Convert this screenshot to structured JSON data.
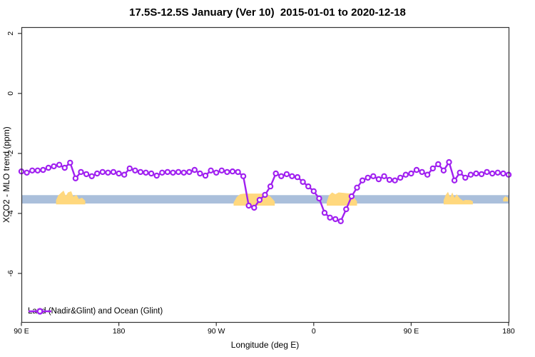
{
  "chart_data": {
    "type": "line",
    "title": "17.5S-12.5S January (Ver 10)  2015-01-01 to 2020-12-18",
    "xlabel": "Longitude (deg E)",
    "ylabel": "XCO2 - MLO trend (ppm)",
    "xlim": [
      90,
      540
    ],
    "ylim": [
      -7.62,
      2.21
    ],
    "grid": "off",
    "x_ticks": [
      {
        "value": 90,
        "label": "90 E"
      },
      {
        "value": 180,
        "label": "180"
      },
      {
        "value": 270,
        "label": "90 W"
      },
      {
        "value": 360,
        "label": "0"
      },
      {
        "value": 450,
        "label": "90 E"
      },
      {
        "value": 540,
        "label": "180"
      }
    ],
    "y_ticks": [
      {
        "value": 2,
        "label": "2"
      },
      {
        "value": 0,
        "label": "0"
      },
      {
        "value": -2,
        "label": "-2"
      },
      {
        "value": -4,
        "label": "-4"
      },
      {
        "value": -6,
        "label": "-6"
      }
    ],
    "legend": [
      {
        "label": "Land (Nadir&Glint) and Ocean (Glint)",
        "color": "#A020F0",
        "marker": "open-circle",
        "position": "bottom-left-inside"
      }
    ],
    "blue_band": {
      "y_top": -3.39,
      "y_bottom": -3.67,
      "x_from": 90,
      "x_to": 540,
      "color": "#AABFDB"
    },
    "orange_patches": [
      {
        "bottom": -3.7,
        "top_profile": [
          [
            122,
            -3.56
          ],
          [
            124,
            -3.4
          ],
          [
            127,
            -3.3
          ],
          [
            129,
            -3.24
          ],
          [
            131,
            -3.42
          ],
          [
            133,
            -3.3
          ],
          [
            136,
            -3.26
          ],
          [
            138,
            -3.44
          ],
          [
            141,
            -3.38
          ],
          [
            143,
            -3.52
          ],
          [
            146,
            -3.48
          ],
          [
            149,
            -3.58
          ]
        ]
      },
      {
        "bottom": -3.74,
        "top_profile": [
          [
            286,
            -3.64
          ],
          [
            289,
            -3.45
          ],
          [
            292,
            -3.36
          ],
          [
            296,
            -3.34
          ],
          [
            316,
            -3.34
          ],
          [
            320,
            -3.44
          ],
          [
            324,
            -3.6
          ]
        ]
      },
      {
        "bottom": -3.74,
        "top_profile": [
          [
            372,
            -3.62
          ],
          [
            374,
            -3.4
          ],
          [
            377,
            -3.3
          ],
          [
            380,
            -3.36
          ],
          [
            383,
            -3.3
          ],
          [
            394,
            -3.34
          ],
          [
            397,
            -3.46
          ],
          [
            400,
            -3.6
          ]
        ]
      },
      {
        "bottom": -3.7,
        "top_profile": [
          [
            480,
            -3.56
          ],
          [
            482,
            -3.38
          ],
          [
            484,
            -3.28
          ],
          [
            486,
            -3.46
          ],
          [
            488,
            -3.3
          ],
          [
            490,
            -3.48
          ],
          [
            492,
            -3.36
          ],
          [
            495,
            -3.5
          ],
          [
            498,
            -3.58
          ],
          [
            500,
            -3.55
          ],
          [
            505,
            -3.56
          ],
          [
            507,
            -3.6
          ]
        ]
      },
      {
        "bottom": -3.6,
        "top_profile": [
          [
            535,
            -3.5
          ],
          [
            537,
            -3.43
          ],
          [
            539.5,
            -3.48
          ]
        ]
      }
    ],
    "series": [
      {
        "name": "Land (Nadir&Glint) and Ocean (Glint)",
        "color": "#A020F0",
        "x": [
          90,
          95,
          100,
          105,
          110,
          115,
          120,
          125,
          130,
          135,
          140,
          145,
          150,
          155,
          160,
          165,
          170,
          175,
          180,
          185,
          190,
          195,
          200,
          205,
          210,
          215,
          220,
          225,
          230,
          235,
          240,
          245,
          250,
          255,
          260,
          265,
          270,
          275,
          280,
          285,
          290,
          295,
          300,
          305,
          310,
          315,
          320,
          325,
          330,
          335,
          340,
          345,
          350,
          355,
          360,
          365,
          370,
          375,
          380,
          385,
          390,
          395,
          400,
          405,
          410,
          415,
          420,
          425,
          430,
          435,
          440,
          445,
          450,
          455,
          460,
          465,
          470,
          475,
          480,
          485,
          490,
          495,
          500,
          505,
          510,
          515,
          520,
          525,
          530,
          535,
          540
        ],
        "y": [
          -2.6,
          -2.64,
          -2.57,
          -2.57,
          -2.55,
          -2.48,
          -2.43,
          -2.38,
          -2.48,
          -2.31,
          -2.83,
          -2.62,
          -2.69,
          -2.76,
          -2.67,
          -2.62,
          -2.64,
          -2.62,
          -2.67,
          -2.71,
          -2.5,
          -2.57,
          -2.62,
          -2.64,
          -2.67,
          -2.74,
          -2.64,
          -2.62,
          -2.64,
          -2.62,
          -2.64,
          -2.62,
          -2.55,
          -2.67,
          -2.74,
          -2.57,
          -2.64,
          -2.57,
          -2.62,
          -2.6,
          -2.62,
          -2.76,
          -3.74,
          -3.81,
          -3.55,
          -3.38,
          -3.1,
          -2.67,
          -2.76,
          -2.69,
          -2.76,
          -2.79,
          -2.95,
          -3.1,
          -3.26,
          -3.5,
          -3.98,
          -4.14,
          -4.19,
          -4.26,
          -3.86,
          -3.43,
          -3.14,
          -2.9,
          -2.81,
          -2.76,
          -2.86,
          -2.76,
          -2.88,
          -2.9,
          -2.81,
          -2.71,
          -2.67,
          -2.55,
          -2.62,
          -2.71,
          -2.5,
          -2.36,
          -2.57,
          -2.29,
          -2.9,
          -2.64,
          -2.81,
          -2.71,
          -2.67,
          -2.69,
          -2.62,
          -2.67,
          -2.64,
          -2.67,
          -2.71
        ]
      }
    ],
    "colors": {
      "series": "#A020F0",
      "band": "#AABFDB",
      "patch": "#FFD87E",
      "axis": "#333333",
      "background": "#FFFFFF"
    }
  }
}
